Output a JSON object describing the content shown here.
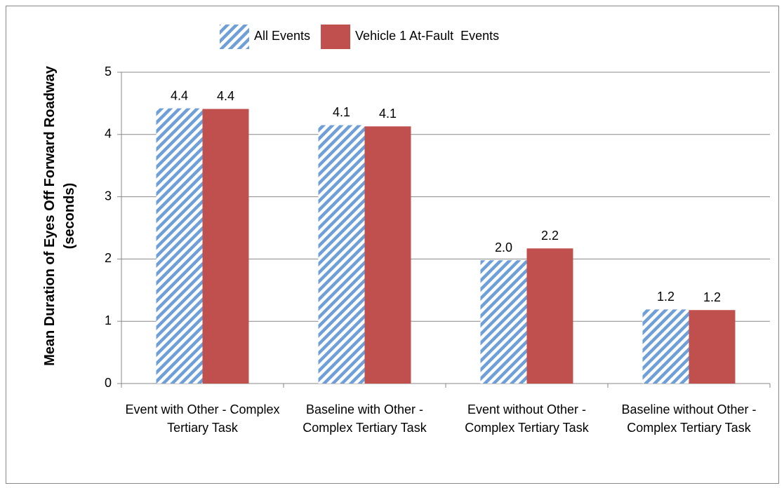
{
  "chart_data": {
    "type": "bar",
    "y_label": "Mean Duration of Eyes Off Forward Roadway (seconds)",
    "categories": [
      "Event with  Other - Complex Tertiary Task",
      "Baseline with Other - Complex Tertiary Task",
      "Event without Other - Complex Tertiary Task",
      "Baseline without Other - Complex Tertiary Task"
    ],
    "series": [
      {
        "name": "All Events",
        "color": "#6f9fd8",
        "pattern": "hatch",
        "values": [
          4.42,
          4.15,
          1.98,
          1.19
        ],
        "value_labels": [
          "4.4",
          "4.1",
          "2.0",
          "1.2"
        ]
      },
      {
        "name": "Vehicle 1 At-Fault  Events",
        "color": "#c0504d",
        "values": [
          4.41,
          4.13,
          2.17,
          1.18
        ],
        "value_labels": [
          "4.4",
          "4.1",
          "2.2",
          "1.2"
        ]
      }
    ],
    "ylim": [
      0,
      5
    ],
    "yticks": [
      0,
      1,
      2,
      3,
      4,
      5
    ],
    "grid": true,
    "legend": "top"
  }
}
